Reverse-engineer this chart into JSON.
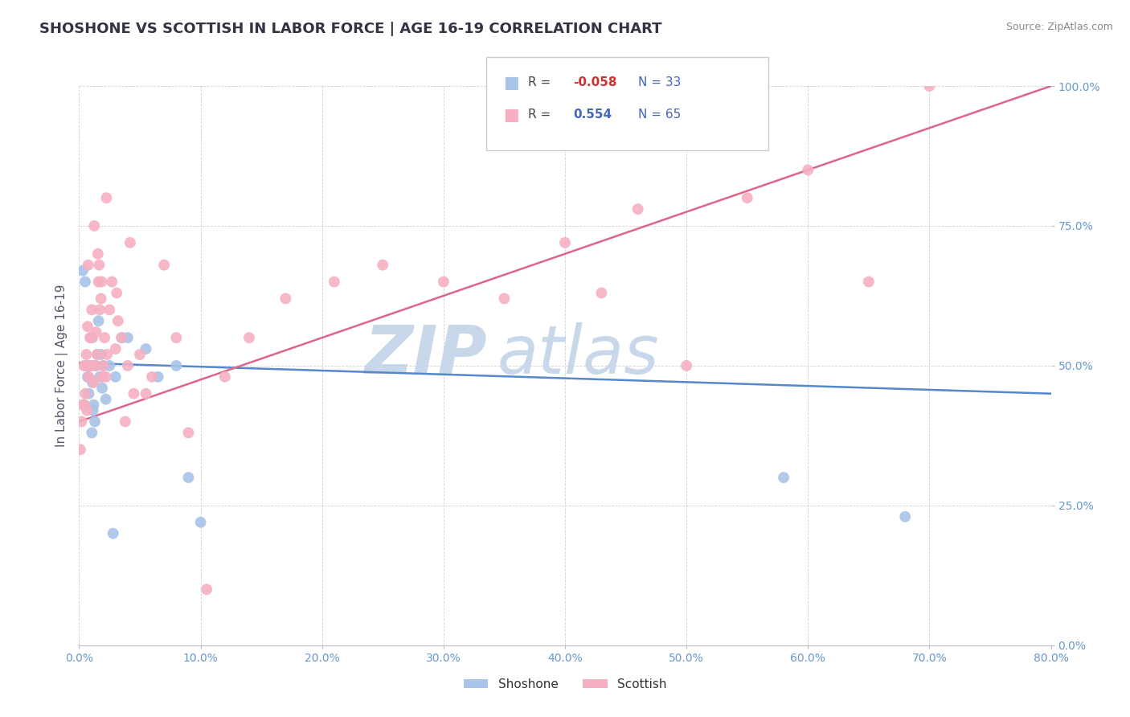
{
  "title": "SHOSHONE VS SCOTTISH IN LABOR FORCE | AGE 16-19 CORRELATION CHART",
  "source_text": "Source: ZipAtlas.com",
  "ylabel": "In Labor Force | Age 16-19",
  "xlim": [
    0.0,
    80.0
  ],
  "ylim": [
    0.0,
    100.0
  ],
  "xticks": [
    0.0,
    10.0,
    20.0,
    30.0,
    40.0,
    50.0,
    60.0,
    70.0,
    80.0
  ],
  "yticks": [
    0.0,
    25.0,
    50.0,
    75.0,
    100.0
  ],
  "shoshone_color": "#a8c4e8",
  "scottish_color": "#f5afc0",
  "shoshone_R": -0.058,
  "shoshone_N": 33,
  "scottish_R": 0.554,
  "scottish_N": 65,
  "shoshone_line_color": "#5588cc",
  "scottish_line_color": "#dd6688",
  "watermark_color": "#c8d8ea",
  "title_fontsize": 13,
  "tick_color": "#6699cc",
  "shoshone_x": [
    0.3,
    0.5,
    0.6,
    0.7,
    0.8,
    0.9,
    1.0,
    1.1,
    1.2,
    1.3,
    1.4,
    1.5,
    1.6,
    1.7,
    1.8,
    1.9,
    2.0,
    2.2,
    2.5,
    3.0,
    3.5,
    4.0,
    5.5,
    6.5,
    8.0,
    9.0,
    10.0,
    58.0,
    68.0,
    2.8,
    1.05,
    1.15,
    0.85
  ],
  "shoshone_y": [
    67.0,
    65.0,
    50.0,
    48.0,
    45.0,
    50.0,
    55.0,
    47.0,
    43.0,
    40.0,
    50.0,
    52.0,
    58.0,
    48.0,
    52.0,
    46.0,
    50.0,
    44.0,
    50.0,
    48.0,
    55.0,
    55.0,
    53.0,
    48.0,
    50.0,
    30.0,
    22.0,
    30.0,
    23.0,
    20.0,
    38.0,
    42.0,
    50.0
  ],
  "scottish_x": [
    0.1,
    0.2,
    0.3,
    0.4,
    0.5,
    0.55,
    0.6,
    0.7,
    0.8,
    0.9,
    1.0,
    1.1,
    1.2,
    1.3,
    1.4,
    1.5,
    1.6,
    1.65,
    1.7,
    1.8,
    1.9,
    2.0,
    2.1,
    2.2,
    2.3,
    2.5,
    2.7,
    3.0,
    3.2,
    3.5,
    3.8,
    4.0,
    4.5,
    5.0,
    5.5,
    6.0,
    7.0,
    8.0,
    9.0,
    10.5,
    12.0,
    14.0,
    17.0,
    21.0,
    25.0,
    30.0,
    35.0,
    40.0,
    43.0,
    46.0,
    50.0,
    55.0,
    60.0,
    65.0,
    70.0,
    0.45,
    0.65,
    0.75,
    1.05,
    1.25,
    1.55,
    1.85,
    2.25,
    3.1,
    4.2
  ],
  "scottish_y": [
    35.0,
    40.0,
    43.0,
    50.0,
    45.0,
    50.0,
    52.0,
    57.0,
    48.0,
    55.0,
    50.0,
    55.0,
    47.0,
    50.0,
    56.0,
    52.0,
    65.0,
    68.0,
    60.0,
    62.0,
    48.0,
    50.0,
    55.0,
    48.0,
    52.0,
    60.0,
    65.0,
    53.0,
    58.0,
    55.0,
    40.0,
    50.0,
    45.0,
    52.0,
    45.0,
    48.0,
    68.0,
    55.0,
    38.0,
    10.0,
    48.0,
    55.0,
    62.0,
    65.0,
    68.0,
    65.0,
    62.0,
    72.0,
    63.0,
    78.0,
    50.0,
    80.0,
    85.0,
    65.0,
    100.0,
    43.0,
    42.0,
    68.0,
    60.0,
    75.0,
    70.0,
    65.0,
    80.0,
    63.0,
    72.0
  ],
  "shoshone_trend": [
    50.5,
    45.0
  ],
  "scottish_trend": [
    40.0,
    100.0
  ]
}
